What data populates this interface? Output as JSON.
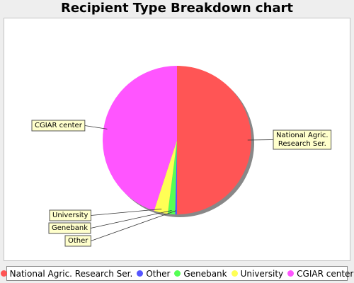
{
  "chart_data": {
    "type": "pie",
    "title": "Recipient Type Breakdown chart",
    "slices": [
      {
        "label": "National Agric. Research Ser.",
        "value": 50.0,
        "color": "#ff5555"
      },
      {
        "label": "Other",
        "value": 0.4,
        "color": "#5555ff"
      },
      {
        "label": "Genebank",
        "value": 1.6,
        "color": "#55ff55"
      },
      {
        "label": "University",
        "value": 3.0,
        "color": "#ffff55"
      },
      {
        "label": "CGIAR center",
        "value": 45.0,
        "color": "#ff55ff"
      }
    ],
    "legend_position": "bottom"
  }
}
